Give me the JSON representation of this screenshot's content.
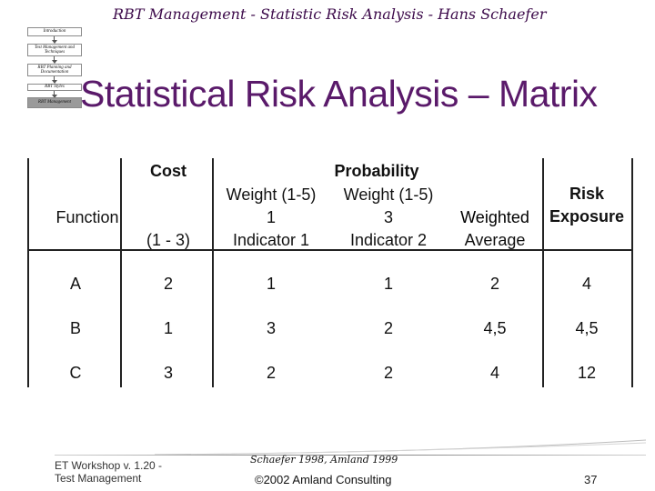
{
  "nav": {
    "items": [
      {
        "label": "Introduction",
        "active": false
      },
      {
        "label": "Test Management and Techniques",
        "active": false
      },
      {
        "label": "RBT Planning and Documentation",
        "active": false
      },
      {
        "label": "RBT Styles",
        "active": false
      },
      {
        "label": "RBT Management",
        "active": true
      }
    ]
  },
  "header": {
    "title": "RBT Management - Statistic Risk Analysis - Hans Schaefer"
  },
  "slide": {
    "title": "Statistical Risk Analysis – Matrix"
  },
  "table": {
    "headers": {
      "function": "Function",
      "cost": "Cost",
      "cost_range": "(1 - 3)",
      "probability": "Probability",
      "weight1": "Weight (1-5)",
      "weight1_value": "1",
      "indicator1": "Indicator 1",
      "weight2": "Weight (1-5)",
      "weight2_value": "3",
      "indicator2": "Indicator 2",
      "weighted": "Weighted",
      "average": "Average",
      "risk": "Risk",
      "exposure": "Exposure"
    },
    "rows": [
      {
        "function": "A",
        "cost": "2",
        "ind1": "1",
        "ind2": "1",
        "avg": "2",
        "risk": "4"
      },
      {
        "function": "B",
        "cost": "1",
        "ind1": "3",
        "ind2": "2",
        "avg": "4,5",
        "risk": "4,5"
      },
      {
        "function": "C",
        "cost": "3",
        "ind1": "2",
        "ind2": "2",
        "avg": "4",
        "risk": "12"
      }
    ]
  },
  "footer": {
    "workshop_line1": "ET Workshop v. 1.20 -",
    "workshop_line2": "Test Management",
    "credit": "Schaefer 1998, Amland 1999",
    "copyright": "©2002 Amland Consulting",
    "page": "37"
  }
}
